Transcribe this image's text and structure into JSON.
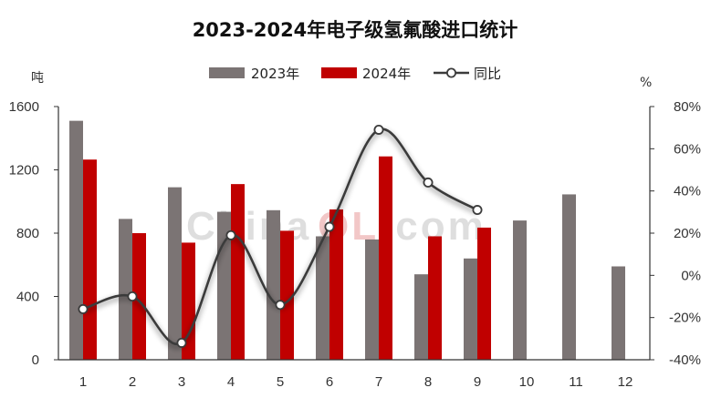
{
  "chart_data": {
    "type": "bar",
    "title": "2023-2024年电子级氢氟酸进口统计",
    "y_left_unit": "吨",
    "y_right_unit": "%",
    "categories": [
      "1",
      "2",
      "3",
      "4",
      "5",
      "6",
      "7",
      "8",
      "9",
      "10",
      "11",
      "12"
    ],
    "ylim": [
      0,
      1600
    ],
    "yticks": [
      0,
      400,
      800,
      1200,
      1600
    ],
    "y2lim": [
      -40,
      80
    ],
    "y2ticks": [
      -40,
      -20,
      0,
      20,
      40,
      60,
      80
    ],
    "y2tick_labels": [
      "-40%",
      "-20%",
      "0%",
      "20%",
      "40%",
      "60%",
      "80%"
    ],
    "grid": false,
    "legend_position": "top-center",
    "series": [
      {
        "name": "2023年",
        "type": "bar",
        "color": "#7b7474",
        "values": [
          1510,
          890,
          1090,
          935,
          945,
          780,
          760,
          540,
          640,
          880,
          1045,
          590
        ]
      },
      {
        "name": "2024年",
        "type": "bar",
        "color": "#c00000",
        "values": [
          1265,
          800,
          740,
          1110,
          815,
          950,
          1285,
          780,
          835,
          null,
          null,
          null
        ]
      },
      {
        "name": "同比",
        "type": "line",
        "axis": "right",
        "color": "#3b3b3b",
        "values": [
          -16,
          -10,
          -32,
          19,
          -14,
          23,
          69,
          44,
          31,
          null,
          null,
          null
        ]
      }
    ],
    "watermark": "ChinaOL.com"
  }
}
